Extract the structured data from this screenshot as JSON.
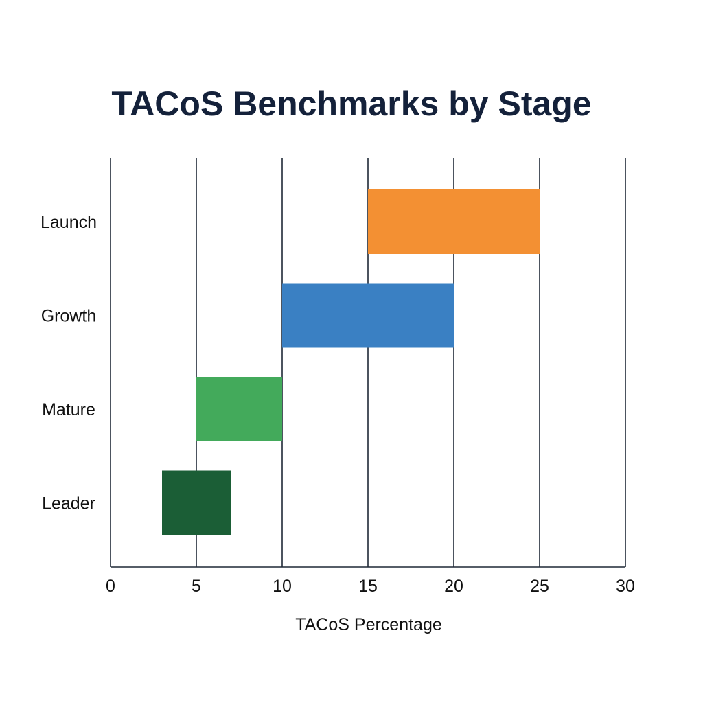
{
  "chart_data": {
    "type": "bar",
    "orientation": "horizontal",
    "bar_style": "floating-range",
    "title": "TACoS Benchmarks by Stage",
    "xlabel": "TACoS Percentage",
    "ylabel": "",
    "xlim": [
      0,
      30
    ],
    "xticks": [
      0,
      5,
      10,
      15,
      20,
      25,
      30
    ],
    "grid": "vertical",
    "categories": [
      "Launch",
      "Growth",
      "Mature",
      "Leader"
    ],
    "ranges": [
      [
        15,
        25
      ],
      [
        10,
        20
      ],
      [
        5,
        10
      ],
      [
        3,
        7
      ]
    ],
    "colors": [
      "#f39033",
      "#3a80c3",
      "#43aa5b",
      "#1b5e36"
    ]
  }
}
